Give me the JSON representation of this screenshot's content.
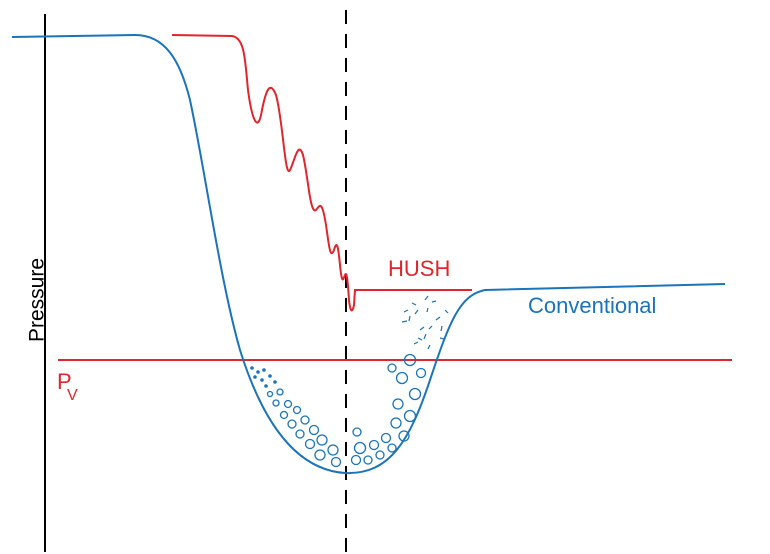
{
  "labels": {
    "y_axis": "Pressure",
    "hush": "HUSH",
    "conventional": "Conventional",
    "vapor_pressure": "P",
    "vapor_pressure_subscript": "V"
  }
}
